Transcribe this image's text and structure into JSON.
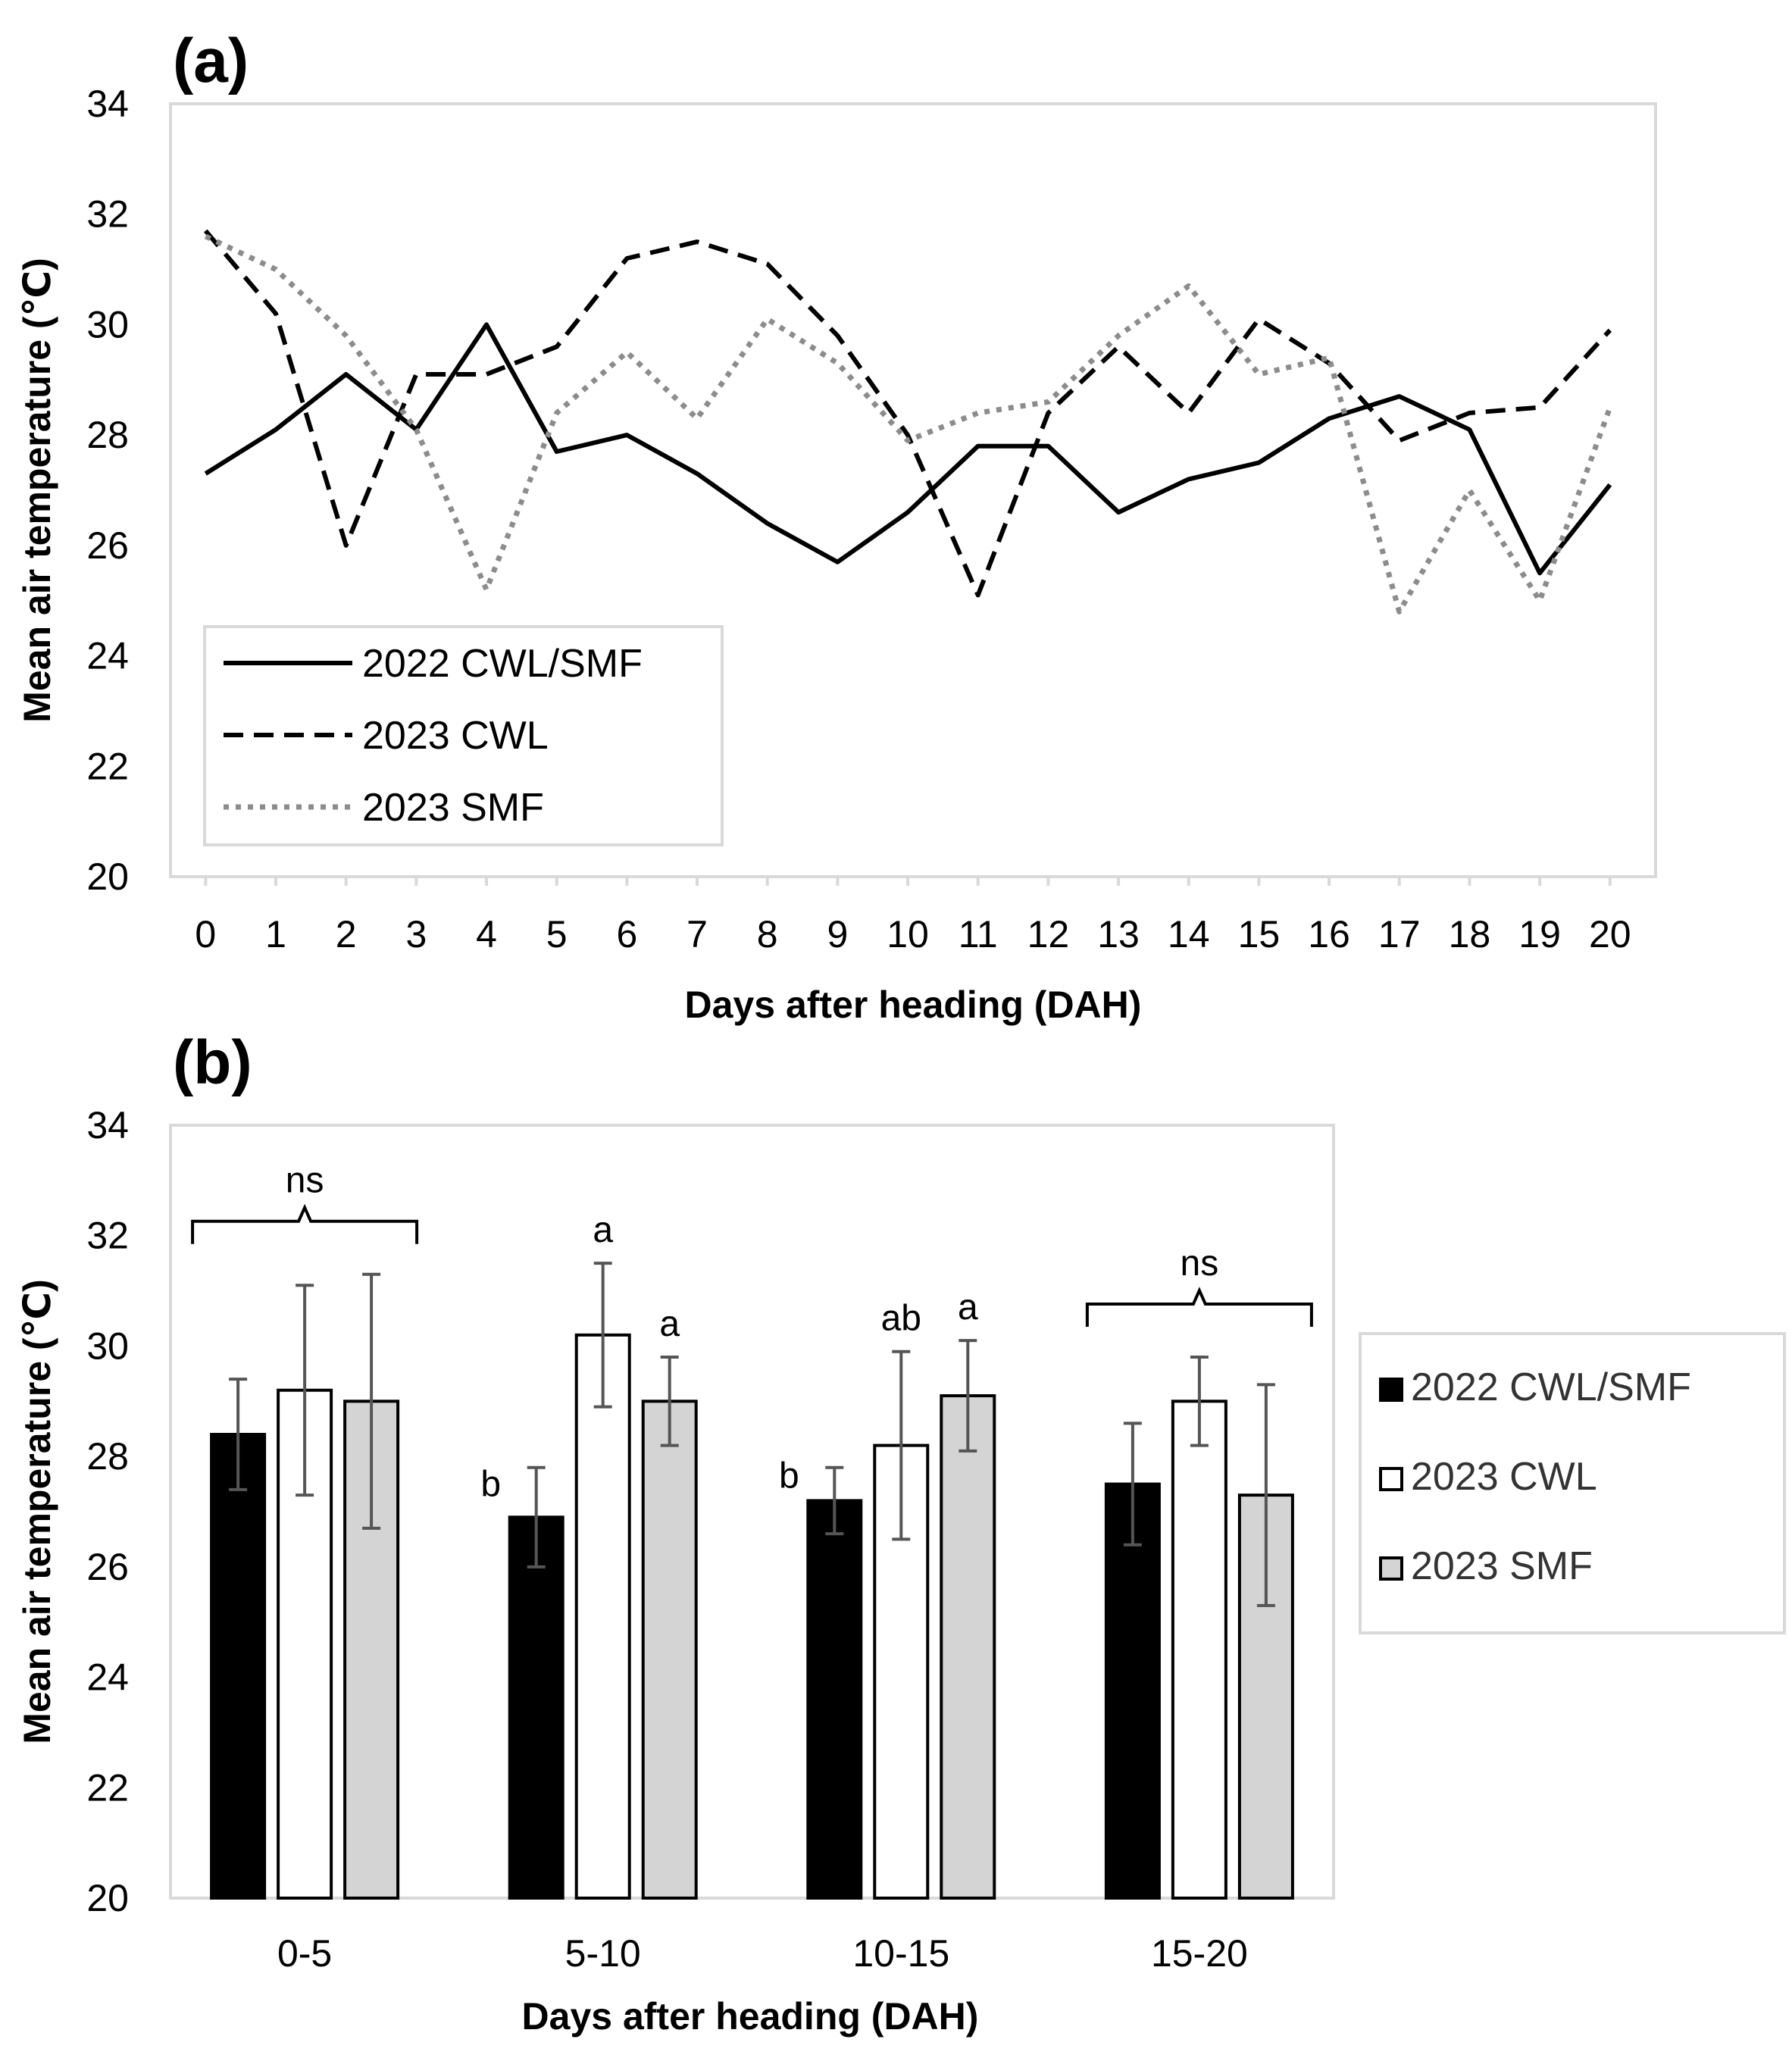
{
  "chart_data": [
    {
      "type": "line",
      "panel_label": "(a)",
      "xlabel": "Days after heading (DAH)",
      "ylabel": "Mean air temperature (℃)",
      "ylim": [
        20,
        34
      ],
      "yticks": [
        "20",
        "22",
        "24",
        "26",
        "28",
        "30",
        "32",
        "34"
      ],
      "x": [
        "0",
        "1",
        "2",
        "3",
        "4",
        "5",
        "6",
        "7",
        "8",
        "9",
        "10",
        "11",
        "12",
        "13",
        "14",
        "15",
        "16",
        "17",
        "18",
        "19",
        "20"
      ],
      "series": [
        {
          "name": "2022 CWL/SMF",
          "style": "solid",
          "color": "#000000",
          "values": [
            27.3,
            28.1,
            29.1,
            28.1,
            30.0,
            27.7,
            28.0,
            27.3,
            26.4,
            25.7,
            26.6,
            27.8,
            27.8,
            26.6,
            27.2,
            27.5,
            28.3,
            28.7,
            28.1,
            25.5,
            27.1
          ]
        },
        {
          "name": "2023 CWL",
          "style": "dashed",
          "color": "#000000",
          "values": [
            31.7,
            30.2,
            26.0,
            29.1,
            29.1,
            29.6,
            31.2,
            31.5,
            31.1,
            29.8,
            28.0,
            25.1,
            28.4,
            29.6,
            28.4,
            30.1,
            29.3,
            27.9,
            28.4,
            28.5,
            29.9
          ]
        },
        {
          "name": "2023 SMF",
          "style": "dotted",
          "color": "#8c8c8c",
          "values": [
            31.6,
            31.0,
            29.8,
            28.1,
            25.2,
            28.4,
            29.5,
            28.3,
            30.1,
            29.3,
            27.9,
            28.4,
            28.6,
            29.8,
            30.7,
            29.1,
            29.4,
            24.8,
            27.0,
            25.0,
            28.5
          ]
        }
      ]
    },
    {
      "type": "bar",
      "panel_label": "(b)",
      "xlabel": "Days after heading (DAH)",
      "ylabel": "Mean air temperature (℃)",
      "ylim": [
        20,
        34
      ],
      "yticks": [
        "20",
        "22",
        "24",
        "26",
        "28",
        "30",
        "32",
        "34"
      ],
      "categories": [
        "0-5",
        "5-10",
        "10-15",
        "15-20"
      ],
      "series": [
        {
          "name": "2022 CWL/SMF",
          "color": "#000000",
          "values": [
            28.4,
            26.9,
            27.2,
            27.5
          ],
          "errors": [
            1.0,
            0.9,
            0.6,
            1.1
          ],
          "labels": [
            "",
            "b",
            "b",
            ""
          ]
        },
        {
          "name": "2023 CWL",
          "color": "#ffffff",
          "values": [
            29.2,
            30.2,
            28.2,
            29.0
          ],
          "errors": [
            1.9,
            1.3,
            1.7,
            0.8
          ],
          "labels": [
            "",
            "a",
            "ab",
            ""
          ]
        },
        {
          "name": "2023 SMF",
          "color": "#d4d4d4",
          "values": [
            29.0,
            29.0,
            29.1,
            27.3
          ],
          "errors": [
            2.3,
            0.8,
            1.0,
            2.0
          ],
          "labels": [
            "",
            "a",
            "a",
            ""
          ]
        }
      ],
      "group_annotations": [
        {
          "category_index": 0,
          "text": "ns"
        },
        {
          "category_index": 3,
          "text": "ns"
        }
      ]
    }
  ]
}
